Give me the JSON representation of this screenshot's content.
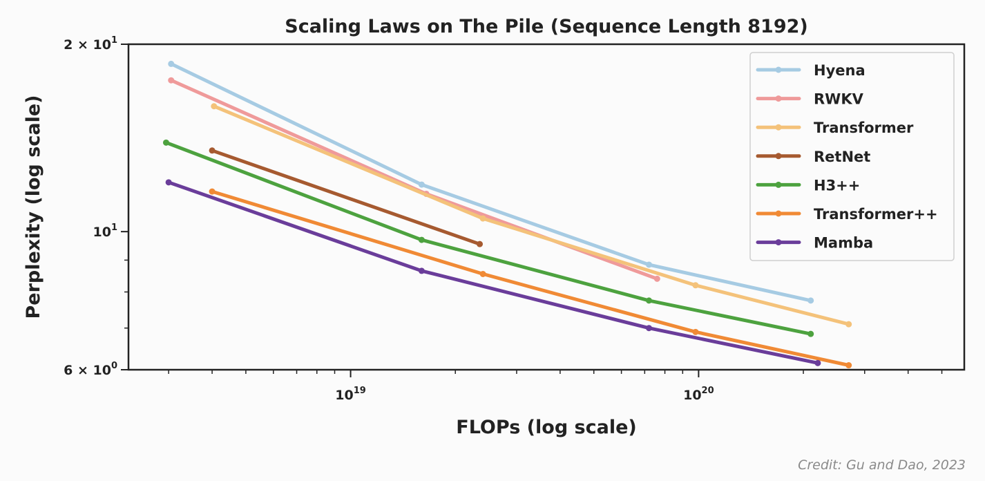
{
  "chart_data": {
    "type": "line",
    "title": "Scaling Laws on The Pile (Sequence Length 8192)",
    "xlabel": "FLOPs (log scale)",
    "ylabel": "Perplexity (log scale)",
    "xscale": "log",
    "yscale": "log",
    "xlim": [
      2.3e+18,
      5.8e+20
    ],
    "ylim": [
      6,
      20
    ],
    "x_major_ticks": [
      {
        "value": 1e+19,
        "base": "10",
        "exp": "19"
      },
      {
        "value": 1e+20,
        "base": "10",
        "exp": "20"
      }
    ],
    "x_minor_ticks": [
      3e+18,
      4e+18,
      5e+18,
      6e+18,
      7e+18,
      8e+18,
      9e+18,
      2e+19,
      3e+19,
      4e+19,
      5e+19,
      6e+19,
      7e+19,
      8e+19,
      9e+19,
      2e+20,
      3e+20,
      4e+20,
      5e+20
    ],
    "y_major_ticks": [
      {
        "value": 20,
        "mantissa": "2",
        "times": "×",
        "base": "10",
        "exp": "1"
      },
      {
        "value": 10,
        "mantissa": "",
        "times": "",
        "base": "10",
        "exp": "1"
      },
      {
        "value": 6,
        "mantissa": "6",
        "times": "×",
        "base": "10",
        "exp": "0"
      }
    ],
    "y_minor_ticks": [
      7,
      8,
      9
    ],
    "grid": false,
    "legend_position": "top-right",
    "series": [
      {
        "name": "Hyena",
        "color": "#a6cbe3",
        "points": [
          [
            3.05e+18,
            18.6
          ],
          [
            1.6e+19,
            11.9
          ],
          [
            7.2e+19,
            8.85
          ],
          [
            2.1e+20,
            7.75
          ]
        ]
      },
      {
        "name": "RWKV",
        "color": "#ef9a9a",
        "points": [
          [
            3.05e+18,
            17.5
          ],
          [
            1.65e+19,
            11.5
          ],
          [
            7.6e+19,
            8.4
          ]
        ]
      },
      {
        "name": "Transformer",
        "color": "#f4c27a",
        "points": [
          [
            4.05e+18,
            15.9
          ],
          [
            2.4e+19,
            10.5
          ],
          [
            9.8e+19,
            8.2
          ],
          [
            2.7e+20,
            7.1
          ]
        ]
      },
      {
        "name": "RetNet",
        "color": "#a65a30",
        "points": [
          [
            4e+18,
            13.5
          ],
          [
            2.35e+19,
            9.55
          ]
        ]
      },
      {
        "name": "H3++",
        "color": "#4da23f",
        "points": [
          [
            2.95e+18,
            13.9
          ],
          [
            1.6e+19,
            9.7
          ],
          [
            7.2e+19,
            7.75
          ],
          [
            2.1e+20,
            6.85
          ]
        ]
      },
      {
        "name": "Transformer++",
        "color": "#f08a35",
        "points": [
          [
            4e+18,
            11.6
          ],
          [
            2.4e+19,
            8.55
          ],
          [
            9.8e+19,
            6.9
          ],
          [
            2.7e+20,
            6.1
          ]
        ]
      },
      {
        "name": "Mamba",
        "color": "#6a3d9a",
        "points": [
          [
            3e+18,
            12.0
          ],
          [
            1.6e+19,
            8.65
          ],
          [
            7.2e+19,
            7.0
          ],
          [
            2.2e+20,
            6.15
          ]
        ]
      }
    ]
  },
  "credit": "Credit: Gu and Dao, 2023"
}
